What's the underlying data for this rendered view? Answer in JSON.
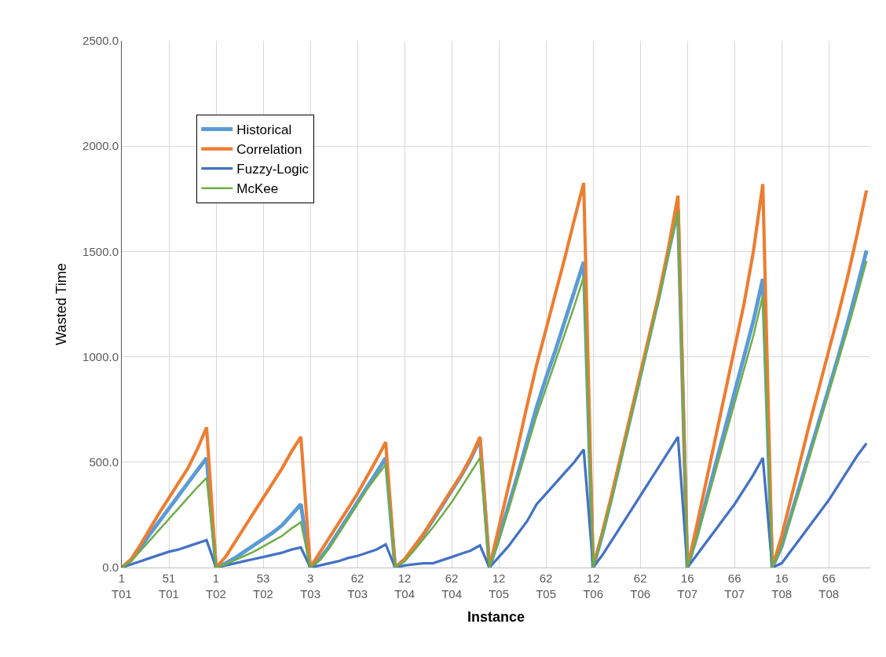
{
  "chart_data": {
    "type": "line",
    "xlabel": "Instance",
    "ylabel": "Wasted Time",
    "categories": [
      "1\nT01",
      null,
      null,
      null,
      null,
      "51\nT01",
      null,
      null,
      null,
      null,
      "1\nT02",
      null,
      null,
      null,
      null,
      "53\nT02",
      null,
      null,
      null,
      null,
      "3\nT03",
      null,
      null,
      null,
      null,
      "62\nT03",
      null,
      null,
      null,
      null,
      "12\nT04",
      null,
      null,
      null,
      null,
      "62\nT04",
      null,
      null,
      null,
      null,
      "12\nT05",
      null,
      null,
      null,
      null,
      "62\nT05",
      null,
      null,
      null,
      null,
      "12\nT06",
      null,
      null,
      null,
      null,
      "62\nT06",
      null,
      null,
      null,
      null,
      "16\nT07",
      null,
      null,
      null,
      null,
      "66\nT07",
      null,
      null,
      null,
      null,
      "16\nT08",
      null,
      null,
      null,
      null,
      "66\nT08",
      null,
      null,
      null,
      null
    ],
    "series": [
      {
        "name": "Historical",
        "color": "#5b9bd5",
        "values": [
          0,
          35,
          95,
          160,
          220,
          280,
          340,
          400,
          460,
          520,
          0,
          20,
          45,
          75,
          105,
          135,
          165,
          200,
          250,
          300,
          0,
          40,
          100,
          170,
          240,
          310,
          380,
          450,
          520,
          0,
          35,
          95,
          155,
          225,
          295,
          365,
          435,
          515,
          610,
          0,
          140,
          290,
          440,
          600,
          760,
          900,
          1030,
          1170,
          1310,
          1450,
          0,
          160,
          340,
          530,
          720,
          910,
          1100,
          1290,
          1500,
          1700,
          0,
          150,
          320,
          490,
          660,
          830,
          1000,
          1170,
          1370,
          0,
          100,
          250,
          400,
          550,
          700,
          850,
          1000,
          1160,
          1330,
          1505
        ]
      },
      {
        "name": "Correlation",
        "color": "#ed7d31",
        "values": [
          0,
          40,
          110,
          185,
          260,
          330,
          400,
          470,
          560,
          665,
          0,
          50,
          120,
          190,
          260,
          330,
          400,
          470,
          550,
          620,
          0,
          70,
          140,
          210,
          280,
          350,
          430,
          510,
          595,
          0,
          40,
          100,
          160,
          230,
          300,
          370,
          440,
          520,
          620,
          0,
          190,
          380,
          570,
          770,
          960,
          1130,
          1300,
          1470,
          1650,
          1825,
          0,
          170,
          350,
          540,
          730,
          920,
          1110,
          1300,
          1520,
          1765,
          0,
          200,
          410,
          620,
          830,
          1040,
          1250,
          1500,
          1820,
          0,
          150,
          330,
          510,
          690,
          860,
          1030,
          1200,
          1380,
          1580,
          1790
        ]
      },
      {
        "name": "Fuzzy-Logic",
        "color": "#4472c4",
        "values": [
          0,
          15,
          30,
          45,
          60,
          75,
          85,
          100,
          115,
          130,
          0,
          10,
          20,
          30,
          40,
          50,
          60,
          70,
          85,
          95,
          0,
          10,
          20,
          30,
          45,
          55,
          70,
          85,
          110,
          0,
          10,
          15,
          20,
          20,
          35,
          50,
          65,
          80,
          105,
          0,
          50,
          100,
          160,
          220,
          300,
          350,
          400,
          450,
          500,
          560,
          0,
          60,
          130,
          200,
          270,
          340,
          410,
          480,
          550,
          620,
          0,
          60,
          120,
          180,
          240,
          300,
          370,
          440,
          520,
          0,
          20,
          80,
          140,
          200,
          260,
          320,
          390,
          460,
          530,
          590
        ]
      },
      {
        "name": "McKee",
        "color": "#70ad47",
        "values": [
          0,
          30,
          80,
          130,
          180,
          230,
          280,
          330,
          380,
          425,
          0,
          15,
          35,
          55,
          75,
          100,
          125,
          150,
          185,
          215,
          0,
          35,
          90,
          160,
          230,
          300,
          370,
          430,
          490,
          0,
          30,
          80,
          135,
          190,
          250,
          310,
          380,
          450,
          520,
          0,
          130,
          270,
          420,
          570,
          720,
          850,
          980,
          1110,
          1240,
          1380,
          0,
          160,
          330,
          520,
          710,
          900,
          1090,
          1280,
          1490,
          1690,
          0,
          140,
          300,
          460,
          620,
          780,
          940,
          1100,
          1290,
          0,
          100,
          240,
          380,
          530,
          680,
          830,
          980,
          1130,
          1290,
          1455
        ]
      }
    ],
    "ylim": [
      0,
      2500
    ],
    "yticks": [
      {
        "value": 0,
        "label": "0.0"
      },
      {
        "value": 500,
        "label": "500.0"
      },
      {
        "value": 1000,
        "label": "1000.0"
      },
      {
        "value": 1500,
        "label": "1500.0"
      },
      {
        "value": 2000,
        "label": "2000.0"
      },
      {
        "value": 2500,
        "label": "2500.0"
      }
    ],
    "grid": true,
    "legend": "top left",
    "marker": "none",
    "line_style": "solid"
  }
}
